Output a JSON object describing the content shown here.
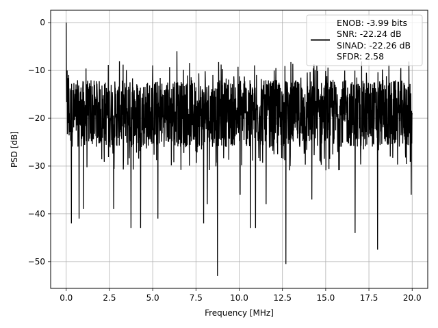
{
  "chart_data": {
    "type": "line",
    "xlabel": "Frequency [MHz]",
    "ylabel": "PSD [dB]",
    "xlim": [
      -0.9,
      20.9
    ],
    "ylim": [
      -55.6,
      2.6
    ],
    "xticks": [
      0.0,
      2.5,
      5.0,
      7.5,
      10.0,
      12.5,
      15.0,
      17.5,
      20.0
    ],
    "xtick_labels": [
      "0.0",
      "2.5",
      "5.0",
      "7.5",
      "10.0",
      "12.5",
      "15.0",
      "17.5",
      "20.0"
    ],
    "yticks": [
      0,
      -10,
      -20,
      -30,
      -40,
      -50
    ],
    "ytick_labels": [
      "0",
      "−10",
      "−20",
      "−30",
      "−40",
      "−50"
    ],
    "grid": true,
    "legend_position": "upper-right",
    "line_color": "#000000",
    "grid_color": "#b0b0b0",
    "legend": [
      "ENOB: -3.99 bits",
      "SNR: -22.24 dB",
      "SINAD: -22.26 dB",
      "SFDR: 2.58"
    ],
    "series": [
      {
        "x_start": 0.0,
        "x_end": 20.0,
        "noise_band": {
          "upper": -8,
          "lower": -31,
          "typical_upper": -12,
          "typical_lower": -26
        },
        "peaks": [
          {
            "x": 0.0,
            "y": 0
          },
          {
            "x": 0.05,
            "y": -10
          },
          {
            "x": 0.3,
            "y": -42
          },
          {
            "x": 0.75,
            "y": -41
          },
          {
            "x": 1.0,
            "y": -39
          },
          {
            "x": 2.75,
            "y": -39
          },
          {
            "x": 3.75,
            "y": -43
          },
          {
            "x": 4.3,
            "y": -43
          },
          {
            "x": 5.3,
            "y": -41
          },
          {
            "x": 6.4,
            "y": -6
          },
          {
            "x": 7.95,
            "y": -42
          },
          {
            "x": 8.15,
            "y": -38
          },
          {
            "x": 8.75,
            "y": -53
          },
          {
            "x": 10.05,
            "y": -36
          },
          {
            "x": 10.65,
            "y": -43
          },
          {
            "x": 10.95,
            "y": -43
          },
          {
            "x": 11.55,
            "y": -38
          },
          {
            "x": 12.7,
            "y": -50.5
          },
          {
            "x": 14.2,
            "y": -37
          },
          {
            "x": 16.7,
            "y": -44
          },
          {
            "x": 18.0,
            "y": -47.5
          },
          {
            "x": 19.95,
            "y": -36
          }
        ]
      }
    ]
  }
}
